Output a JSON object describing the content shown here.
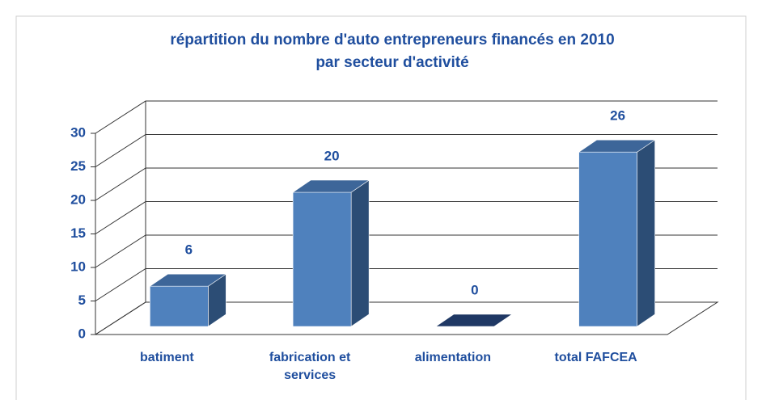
{
  "chart_data": {
    "type": "bar3d",
    "title": [
      "répartition du nombre d'auto entrepreneurs financés en 2010",
      "par secteur d'activité"
    ],
    "categories": [
      "batiment",
      "fabrication et services",
      "alimentation",
      "total FAFCEA"
    ],
    "values": [
      6,
      20,
      0,
      26
    ],
    "color": "#4f81bd",
    "side_color": "#2c4d75",
    "top_color": "#3d6699",
    "ylim": [
      0,
      30
    ],
    "yticks": [
      0,
      5,
      10,
      15,
      20,
      25,
      30
    ],
    "grid": true
  }
}
